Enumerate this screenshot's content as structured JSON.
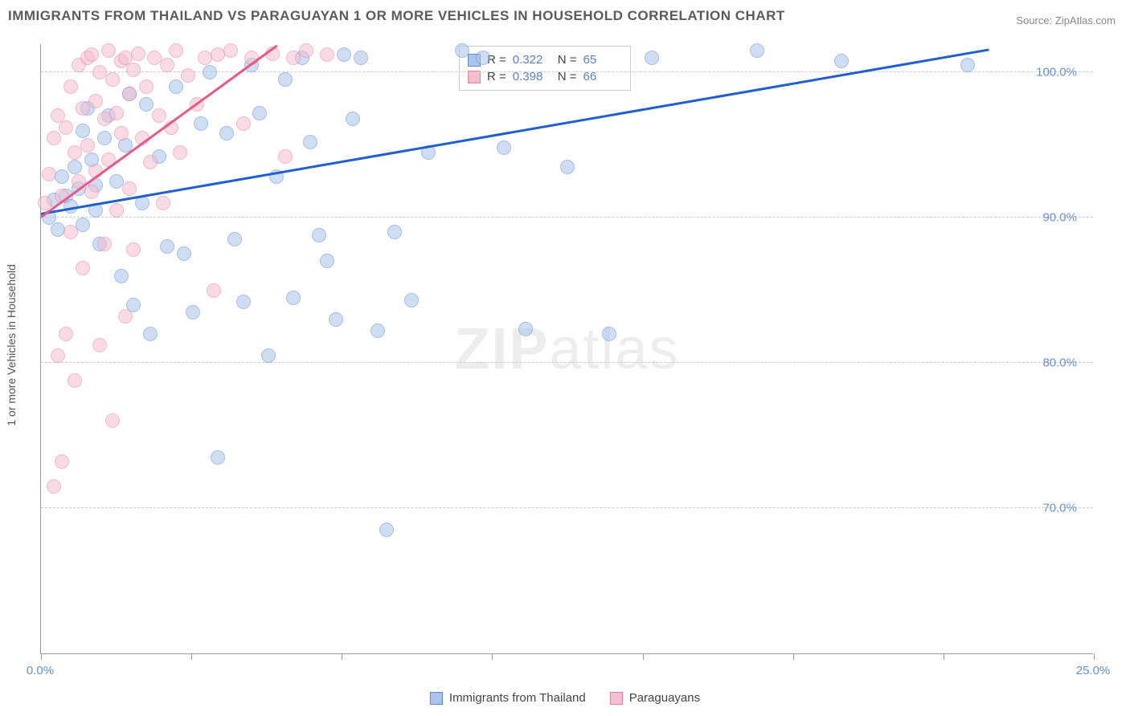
{
  "title": "IMMIGRANTS FROM THAILAND VS PARAGUAYAN 1 OR MORE VEHICLES IN HOUSEHOLD CORRELATION CHART",
  "source_label": "Source:",
  "source_value": "ZipAtlas.com",
  "watermark_a": "ZIP",
  "watermark_b": "atlas",
  "chart": {
    "type": "scatter",
    "background_color": "#ffffff",
    "grid_color": "#cccccc",
    "axis_color": "#999999",
    "y_axis_label": "1 or more Vehicles in Household",
    "label_fontsize": 14,
    "tick_fontsize": 15,
    "tick_color": "#6a8fd8",
    "xlim": [
      0,
      25
    ],
    "ylim": [
      60,
      102
    ],
    "x_ticks": [
      0,
      25
    ],
    "x_tick_labels": [
      "0.0%",
      "25.0%"
    ],
    "x_minor_ticks": [
      0,
      3.57,
      7.14,
      10.71,
      14.29,
      17.86,
      21.43,
      25
    ],
    "y_ticks": [
      70,
      80,
      90,
      100
    ],
    "y_tick_labels": [
      "70.0%",
      "80.0%",
      "90.0%",
      "100.0%"
    ],
    "marker_size": 18,
    "marker_opacity": 0.55,
    "series": [
      {
        "name": "Immigrants from Thailand",
        "color_fill": "#aac4ec",
        "color_stroke": "#5b8bd4",
        "trend_color": "#1f5fd0",
        "trend_width": 2.5,
        "R": "0.322",
        "N": "65",
        "trend": {
          "x1": 0,
          "y1": 90.2,
          "x2": 22.5,
          "y2": 101.5
        },
        "points": [
          [
            0.2,
            90.0
          ],
          [
            0.3,
            91.2
          ],
          [
            0.5,
            92.8
          ],
          [
            0.6,
            91.5
          ],
          [
            0.8,
            93.5
          ],
          [
            0.9,
            92.0
          ],
          [
            1.0,
            96.0
          ],
          [
            1.1,
            97.5
          ],
          [
            1.2,
            94.0
          ],
          [
            1.3,
            90.5
          ],
          [
            1.4,
            88.2
          ],
          [
            1.5,
            95.5
          ],
          [
            1.6,
            97.0
          ],
          [
            1.8,
            92.5
          ],
          [
            1.9,
            86.0
          ],
          [
            2.0,
            95.0
          ],
          [
            2.1,
            98.5
          ],
          [
            2.2,
            84.0
          ],
          [
            2.4,
            91.0
          ],
          [
            2.5,
            97.8
          ],
          [
            2.6,
            82.0
          ],
          [
            2.8,
            94.2
          ],
          [
            3.0,
            88.0
          ],
          [
            3.2,
            99.0
          ],
          [
            3.4,
            87.5
          ],
          [
            3.6,
            83.5
          ],
          [
            3.8,
            96.5
          ],
          [
            4.0,
            100.0
          ],
          [
            4.2,
            73.5
          ],
          [
            4.4,
            95.8
          ],
          [
            4.6,
            88.5
          ],
          [
            4.8,
            84.2
          ],
          [
            5.0,
            100.5
          ],
          [
            5.2,
            97.2
          ],
          [
            5.4,
            80.5
          ],
          [
            5.6,
            92.8
          ],
          [
            5.8,
            99.5
          ],
          [
            6.0,
            84.5
          ],
          [
            6.2,
            101.0
          ],
          [
            6.4,
            95.2
          ],
          [
            6.6,
            88.8
          ],
          [
            6.8,
            87.0
          ],
          [
            7.0,
            83.0
          ],
          [
            7.2,
            101.2
          ],
          [
            7.4,
            96.8
          ],
          [
            7.6,
            101.0
          ],
          [
            8.0,
            82.2
          ],
          [
            8.2,
            68.5
          ],
          [
            8.4,
            89.0
          ],
          [
            8.8,
            84.3
          ],
          [
            9.2,
            94.5
          ],
          [
            10.0,
            101.5
          ],
          [
            10.5,
            101.0
          ],
          [
            11.0,
            94.8
          ],
          [
            11.5,
            82.3
          ],
          [
            12.5,
            93.5
          ],
          [
            13.5,
            82.0
          ],
          [
            14.5,
            101.0
          ],
          [
            17.0,
            101.5
          ],
          [
            19.0,
            100.8
          ],
          [
            22.0,
            100.5
          ],
          [
            0.4,
            89.2
          ],
          [
            0.7,
            90.8
          ],
          [
            1.0,
            89.5
          ],
          [
            1.3,
            92.2
          ]
        ]
      },
      {
        "name": "Paraguayans",
        "color_fill": "#f5bfd0",
        "color_stroke": "#e8809e",
        "trend_color": "#e65a87",
        "trend_width": 2.5,
        "R": "0.398",
        "N": "66",
        "trend": {
          "x1": 0,
          "y1": 90.0,
          "x2": 5.6,
          "y2": 101.8
        },
        "points": [
          [
            0.1,
            91.0
          ],
          [
            0.2,
            93.0
          ],
          [
            0.3,
            95.5
          ],
          [
            0.3,
            71.5
          ],
          [
            0.4,
            97.0
          ],
          [
            0.4,
            80.5
          ],
          [
            0.5,
            91.5
          ],
          [
            0.5,
            73.2
          ],
          [
            0.6,
            96.2
          ],
          [
            0.6,
            82.0
          ],
          [
            0.7,
            99.0
          ],
          [
            0.7,
            89.0
          ],
          [
            0.8,
            94.5
          ],
          [
            0.8,
            78.8
          ],
          [
            0.9,
            100.5
          ],
          [
            0.9,
            92.5
          ],
          [
            1.0,
            97.5
          ],
          [
            1.0,
            86.5
          ],
          [
            1.1,
            101.0
          ],
          [
            1.1,
            95.0
          ],
          [
            1.2,
            101.2
          ],
          [
            1.2,
            91.8
          ],
          [
            1.3,
            98.0
          ],
          [
            1.3,
            93.2
          ],
          [
            1.4,
            100.0
          ],
          [
            1.4,
            81.2
          ],
          [
            1.5,
            96.8
          ],
          [
            1.5,
            88.2
          ],
          [
            1.6,
            101.5
          ],
          [
            1.6,
            94.0
          ],
          [
            1.7,
            99.5
          ],
          [
            1.7,
            76.0
          ],
          [
            1.8,
            97.2
          ],
          [
            1.8,
            90.5
          ],
          [
            1.9,
            100.8
          ],
          [
            1.9,
            95.8
          ],
          [
            2.0,
            101.0
          ],
          [
            2.0,
            83.2
          ],
          [
            2.1,
            98.5
          ],
          [
            2.1,
            92.0
          ],
          [
            2.2,
            100.2
          ],
          [
            2.2,
            87.8
          ],
          [
            2.3,
            101.3
          ],
          [
            2.4,
            95.5
          ],
          [
            2.5,
            99.0
          ],
          [
            2.6,
            93.8
          ],
          [
            2.7,
            101.0
          ],
          [
            2.8,
            97.0
          ],
          [
            2.9,
            91.0
          ],
          [
            3.0,
            100.5
          ],
          [
            3.1,
            96.2
          ],
          [
            3.2,
            101.5
          ],
          [
            3.3,
            94.5
          ],
          [
            3.5,
            99.8
          ],
          [
            3.7,
            97.8
          ],
          [
            3.9,
            101.0
          ],
          [
            4.1,
            85.0
          ],
          [
            4.2,
            101.2
          ],
          [
            4.5,
            101.5
          ],
          [
            4.8,
            96.5
          ],
          [
            5.0,
            101.0
          ],
          [
            5.5,
            101.3
          ],
          [
            5.8,
            94.2
          ],
          [
            6.0,
            101.0
          ],
          [
            6.3,
            101.5
          ],
          [
            6.8,
            101.2
          ]
        ]
      }
    ]
  },
  "legend_top": {
    "R_label": "R =",
    "N_label": "N ="
  },
  "legend_bottom": {
    "items": [
      "Immigrants from Thailand",
      "Paraguayans"
    ]
  }
}
